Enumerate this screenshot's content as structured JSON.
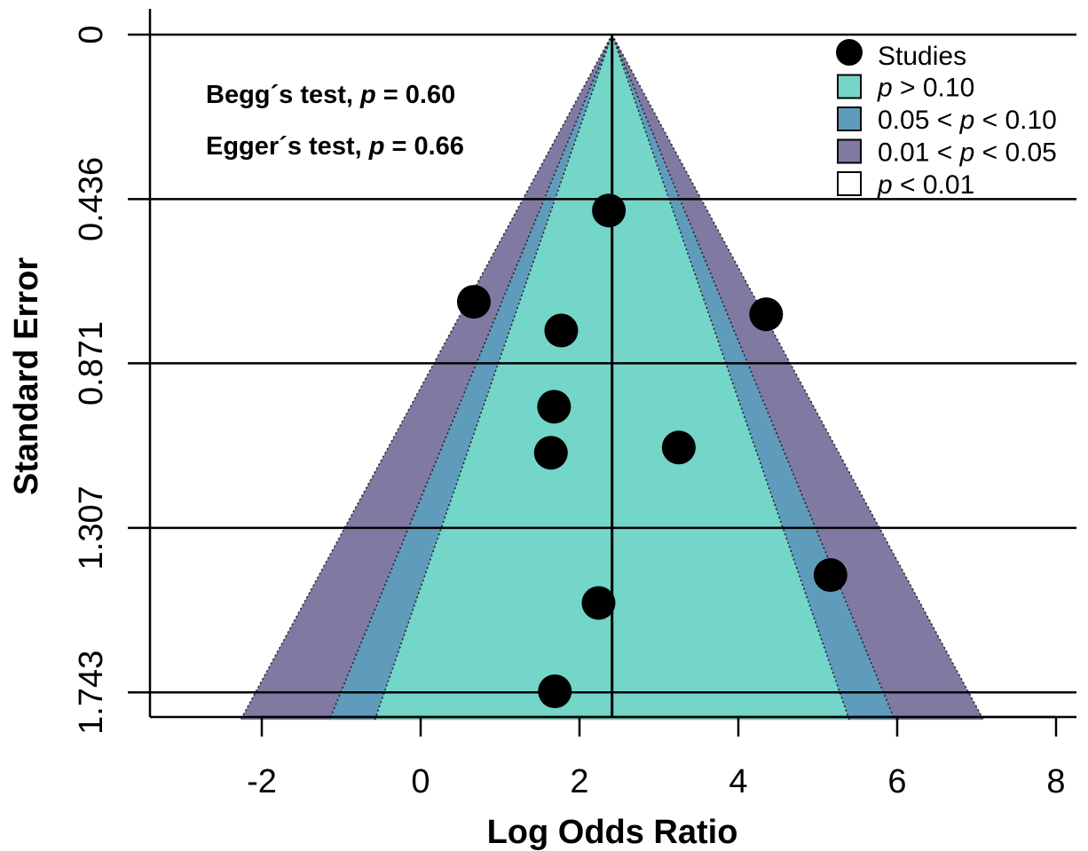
{
  "chart_data": {
    "type": "scatter",
    "subtype": "contour-enhanced funnel plot",
    "xlabel": "Log Odds Ratio",
    "ylabel": "Standard Error",
    "xlim": [
      -3.4,
      8.2
    ],
    "ylim": [
      1.8155,
      0
    ],
    "y_reversed": true,
    "x_ticks": [
      -2,
      0,
      2,
      4,
      6,
      8
    ],
    "x_tick_labels": [
      "-2",
      "0",
      "2",
      "4",
      "6",
      "8"
    ],
    "y_ticks": [
      0,
      0.436,
      0.871,
      1.307,
      1.743
    ],
    "y_tick_labels": [
      "0",
      "0.436",
      "0.871",
      "1.307",
      "1.743"
    ],
    "grid": "horizontal lines at y ticks",
    "pooled_estimate": 2.41,
    "contours": [
      {
        "label": "p < 0.01",
        "z": 2.576,
        "color": "#ffffff"
      },
      {
        "label": "0.01 < p < 0.05",
        "z": 2.576,
        "color": "#8079a2"
      },
      {
        "label": "0.05 < p < 0.10",
        "z": 1.96,
        "color": "#5f9bbb"
      },
      {
        "label": "p > 0.10",
        "z": 1.645,
        "color": "#73d6c8"
      }
    ],
    "series": [
      {
        "name": "Studies",
        "points": [
          {
            "x": 2.37,
            "y": 0.466
          },
          {
            "x": 0.67,
            "y": 0.708
          },
          {
            "x": 4.35,
            "y": 0.741
          },
          {
            "x": 1.77,
            "y": 0.784
          },
          {
            "x": 1.68,
            "y": 0.986
          },
          {
            "x": 1.64,
            "y": 1.108
          },
          {
            "x": 3.25,
            "y": 1.094
          },
          {
            "x": 5.16,
            "y": 1.432
          },
          {
            "x": 2.24,
            "y": 1.506
          },
          {
            "x": 1.69,
            "y": 1.74
          }
        ]
      }
    ],
    "annotations": [
      {
        "prefix": "Begg´s test, ",
        "p": "p",
        "suffix": " = 0.60"
      },
      {
        "prefix": "Egger´s test, ",
        "p": "p",
        "suffix": " = 0.66"
      }
    ],
    "legend": {
      "placement": "top-right",
      "entries": [
        {
          "key": "studies",
          "label": "Studies"
        },
        {
          "key": "gt10",
          "pre": "",
          "p": "p",
          "post": " > 0.10",
          "color": "#73d6c8"
        },
        {
          "key": "b05_10",
          "pre": "0.05 < ",
          "p": "p",
          "post": " < 0.10",
          "color": "#5f9bbb"
        },
        {
          "key": "b01_05",
          "pre": "0.01 < ",
          "p": "p",
          "post": " < 0.05",
          "color": "#8079a2"
        },
        {
          "key": "lt01",
          "pre": "",
          "p": "p",
          "post": " < 0.01",
          "color": "#ffffff"
        }
      ]
    }
  }
}
